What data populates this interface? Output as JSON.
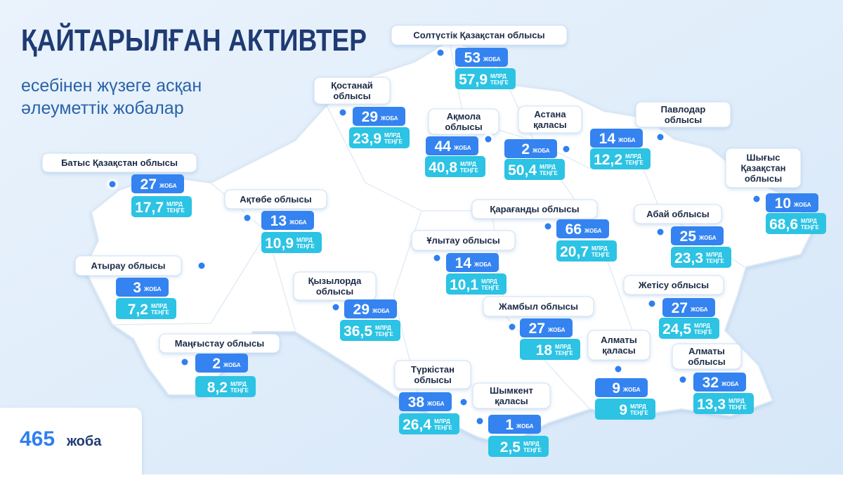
{
  "header": {
    "title": "ҚАЙТАРЫЛҒАН АКТИВТЕР",
    "subtitle": [
      "есебінен жүзеге асқан",
      "әлеуметтік жобалар"
    ]
  },
  "units": {
    "projects": "ЖОБА",
    "amount_top": "МЛРД",
    "amount_bottom": "ТЕҢГЕ"
  },
  "total": {
    "value": 465,
    "unit": "жоба"
  },
  "regions": [
    {
      "name": [
        "Солтүстік Қазақстан облысы"
      ],
      "projects": 53,
      "amount": "57,9"
    },
    {
      "name": [
        "Қостанай",
        "облысы"
      ],
      "projects": 29,
      "amount": "23,9"
    },
    {
      "name": [
        "Ақмола",
        "облысы"
      ],
      "projects": 44,
      "amount": "40,8"
    },
    {
      "name": [
        "Астана",
        "қаласы"
      ],
      "projects": 2,
      "amount": "50,4"
    },
    {
      "name": [
        "Павлодар",
        "облысы"
      ],
      "projects": 14,
      "amount": "12,2"
    },
    {
      "name": [
        "Батыс Қазақстан облысы"
      ],
      "projects": 27,
      "amount": "17,7"
    },
    {
      "name": [
        "Шығыс",
        "Қазақстан",
        "облысы"
      ],
      "projects": 10,
      "amount": "68,6"
    },
    {
      "name": [
        "Ақтөбе облысы"
      ],
      "projects": 13,
      "amount": "10,9"
    },
    {
      "name": [
        "Қарағанды облысы"
      ],
      "projects": 66,
      "amount": "20,7"
    },
    {
      "name": [
        "Абай облысы"
      ],
      "projects": 25,
      "amount": "23,3"
    },
    {
      "name": [
        "Ұлытау облысы"
      ],
      "projects": 14,
      "amount": "10,1"
    },
    {
      "name": [
        "Атырау облысы"
      ],
      "projects": 3,
      "amount": "7,2"
    },
    {
      "name": [
        "Қызылорда",
        "облысы"
      ],
      "projects": 29,
      "amount": "36,5"
    },
    {
      "name": [
        "Жетісу облысы"
      ],
      "projects": 27,
      "amount": "24,5"
    },
    {
      "name": [
        "Жамбыл облысы"
      ],
      "projects": 27,
      "amount": "18"
    },
    {
      "name": [
        "Маңғыстау облысы"
      ],
      "projects": 2,
      "amount": "8,2"
    },
    {
      "name": [
        "Алматы",
        "қаласы"
      ],
      "projects": 9,
      "amount": "9"
    },
    {
      "name": [
        "Алматы",
        "облысы"
      ],
      "projects": 32,
      "amount": "13,3"
    },
    {
      "name": [
        "Түркістан",
        "облысы"
      ],
      "projects": 38,
      "amount": "26,4"
    },
    {
      "name": [
        "Шымкент",
        "қаласы"
      ],
      "projects": 1,
      "amount": "2,5"
    }
  ]
}
